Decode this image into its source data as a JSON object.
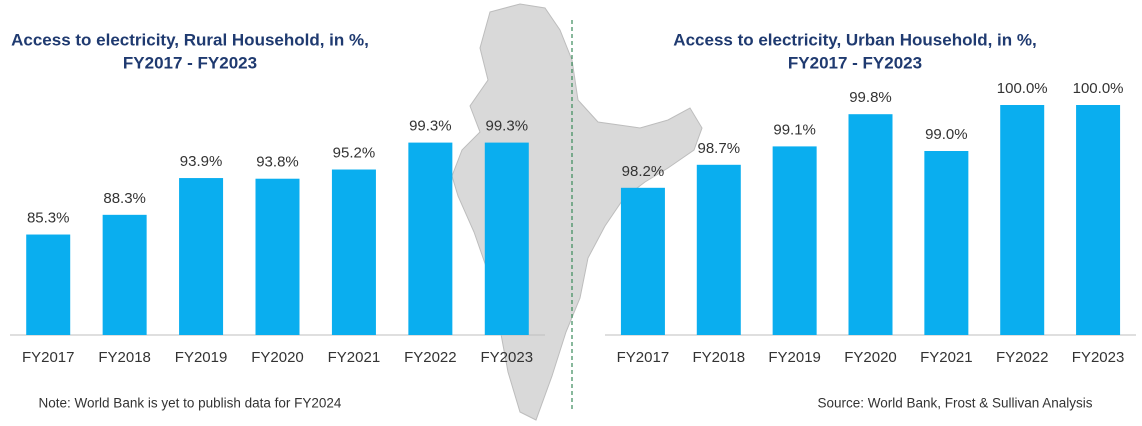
{
  "chart_data": [
    {
      "type": "bar",
      "title": [
        "Access to electricity, Rural Household, in %,",
        "FY2017 - FY2023"
      ],
      "categories": [
        "FY2017",
        "FY2018",
        "FY2019",
        "FY2020",
        "FY2021",
        "FY2022",
        "FY2023"
      ],
      "values": [
        85.3,
        88.3,
        93.9,
        93.8,
        95.2,
        99.3,
        99.3
      ],
      "value_labels": [
        "85.3%",
        "88.3%",
        "93.9%",
        "93.8%",
        "95.2%",
        "99.3%",
        "99.3%"
      ],
      "color": "#0aaeef",
      "ylim": [
        70,
        100
      ],
      "note": "Note: World Bank is yet to publish data for FY2024"
    },
    {
      "type": "bar",
      "title": [
        "Access to electricity, Urban Household, in %,",
        "FY2017 - FY2023"
      ],
      "categories": [
        "FY2017",
        "FY2018",
        "FY2019",
        "FY2020",
        "FY2021",
        "FY2022",
        "FY2023"
      ],
      "values": [
        98.2,
        98.7,
        99.1,
        99.8,
        99.0,
        100.0,
        100.0
      ],
      "value_labels": [
        "98.2%",
        "98.7%",
        "99.1%",
        "99.8%",
        "99.0%",
        "100.0%",
        "100.0%"
      ],
      "color": "#0aaeef",
      "ylim": [
        95,
        100
      ],
      "note": "Source: World Bank, Frost & Sullivan Analysis"
    }
  ]
}
